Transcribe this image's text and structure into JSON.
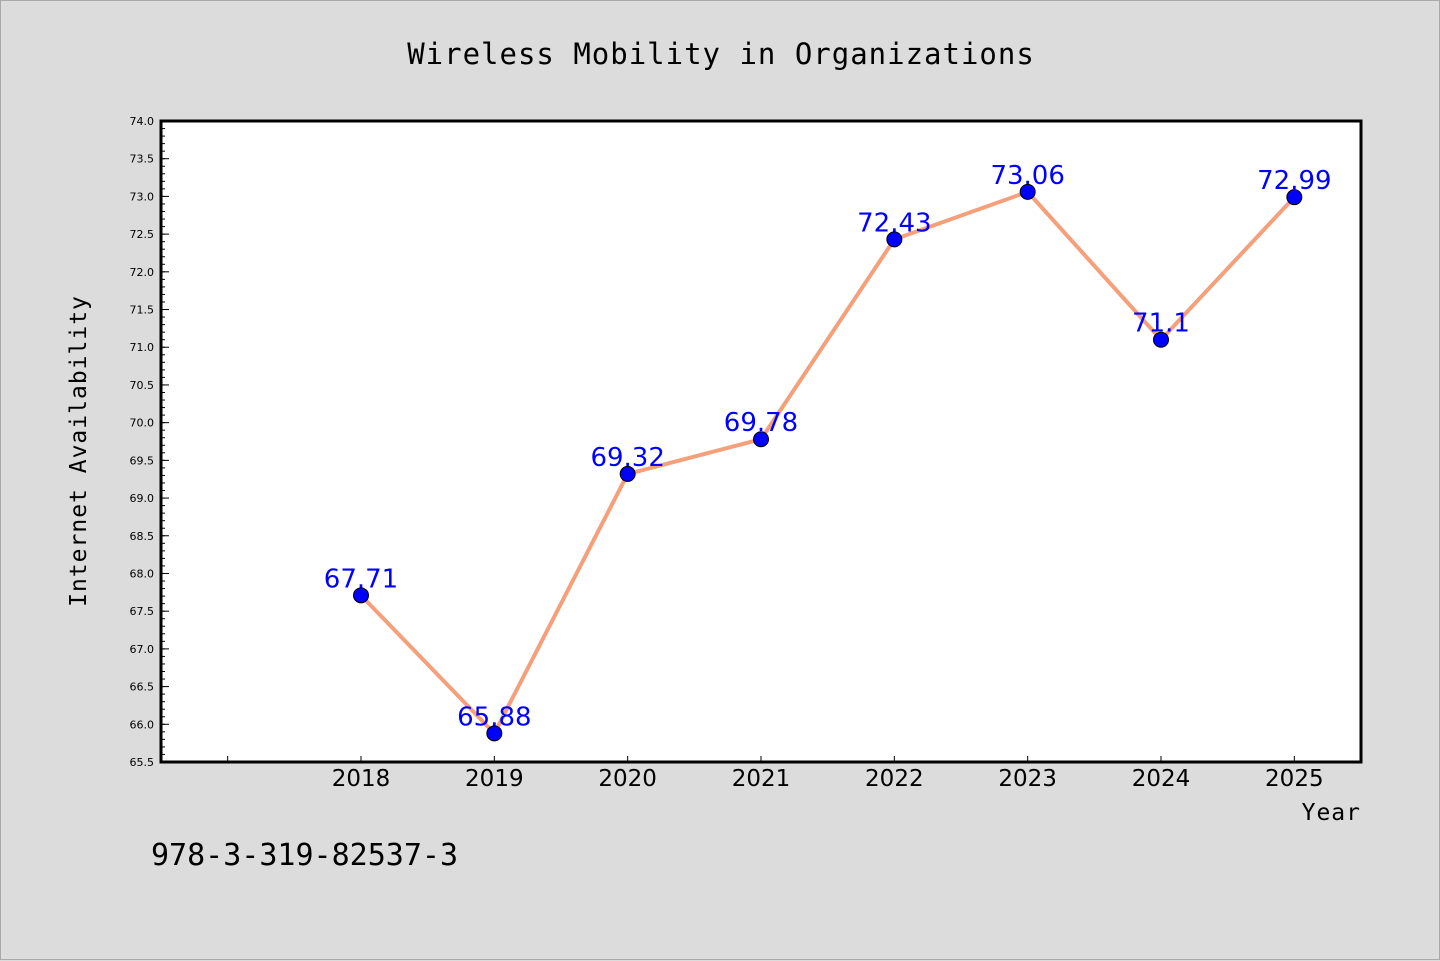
{
  "footer": {
    "code": "978-3-319-82537-3"
  },
  "colors": {
    "background": "#dcdcdc",
    "plot_area": "#ffffff",
    "line": "#f5a07a",
    "marker": "#0000ff",
    "data_label": "#0000ff"
  },
  "chart_data": {
    "type": "line",
    "title": "Wireless Mobility in Organizations",
    "xlabel": "Year",
    "ylabel": "Internet Availability",
    "x": [
      2018,
      2019,
      2020,
      2021,
      2022,
      2023,
      2024,
      2025
    ],
    "x_tick_labels": [
      "2018",
      "2019",
      "2020",
      "2021",
      "2022",
      "2023",
      "2024",
      "2025"
    ],
    "xlim": [
      2016.5,
      2025.5
    ],
    "series": [
      {
        "values": [
          67.71,
          65.88,
          69.32,
          69.78,
          72.43,
          73.06,
          71.1,
          72.99
        ],
        "data_labels": [
          "67.71",
          "65.88",
          "69.32",
          "69.78",
          "72.43",
          "73.06",
          "71.1",
          "72.99"
        ]
      }
    ],
    "ylim": [
      65.5,
      74.0
    ],
    "y_ticks": [
      "65.5",
      "66.0",
      "66.5",
      "67.0",
      "67.5",
      "68.0",
      "68.5",
      "69.0",
      "69.5",
      "70.0",
      "70.5",
      "71.0",
      "71.5",
      "72.0",
      "72.5",
      "73.0",
      "73.5",
      "74.0"
    ],
    "grid": false,
    "legend": "none"
  }
}
